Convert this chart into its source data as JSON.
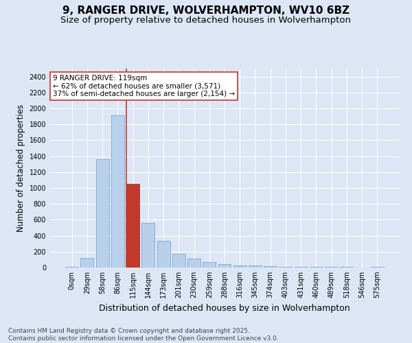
{
  "title": "9, RANGER DRIVE, WOLVERHAMPTON, WV10 6BZ",
  "subtitle": "Size of property relative to detached houses in Wolverhampton",
  "xlabel": "Distribution of detached houses by size in Wolverhampton",
  "ylabel": "Number of detached properties",
  "categories": [
    "0sqm",
    "29sqm",
    "58sqm",
    "86sqm",
    "115sqm",
    "144sqm",
    "173sqm",
    "201sqm",
    "230sqm",
    "259sqm",
    "288sqm",
    "316sqm",
    "345sqm",
    "374sqm",
    "403sqm",
    "431sqm",
    "460sqm",
    "489sqm",
    "518sqm",
    "546sqm",
    "575sqm"
  ],
  "values": [
    10,
    125,
    1360,
    1910,
    1055,
    560,
    335,
    170,
    115,
    65,
    40,
    30,
    25,
    20,
    10,
    5,
    5,
    5,
    5,
    0,
    10
  ],
  "bar_color": "#b8d0ea",
  "bar_edge_color": "#6aa0cc",
  "highlight_bar_index": 4,
  "highlight_bar_color": "#c0392b",
  "highlight_bar_edge_color": "#922b21",
  "vline_color": "#c0392b",
  "annotation_text": "9 RANGER DRIVE: 119sqm\n← 62% of detached houses are smaller (3,571)\n37% of semi-detached houses are larger (2,154) →",
  "annotation_box_facecolor": "#ffffff",
  "annotation_box_edgecolor": "#c0392b",
  "annotation_fontsize": 7.5,
  "ylim": [
    0,
    2500
  ],
  "yticks": [
    0,
    200,
    400,
    600,
    800,
    1000,
    1200,
    1400,
    1600,
    1800,
    2000,
    2200,
    2400
  ],
  "background_color": "#dce6f5",
  "plot_bg_color": "#dce6f5",
  "grid_color": "#ffffff",
  "title_fontsize": 11,
  "subtitle_fontsize": 9.5,
  "xlabel_fontsize": 9,
  "ylabel_fontsize": 8.5,
  "tick_fontsize": 7,
  "footer_text": "Contains HM Land Registry data © Crown copyright and database right 2025.\nContains public sector information licensed under the Open Government Licence v3.0.",
  "footer_fontsize": 6.5
}
